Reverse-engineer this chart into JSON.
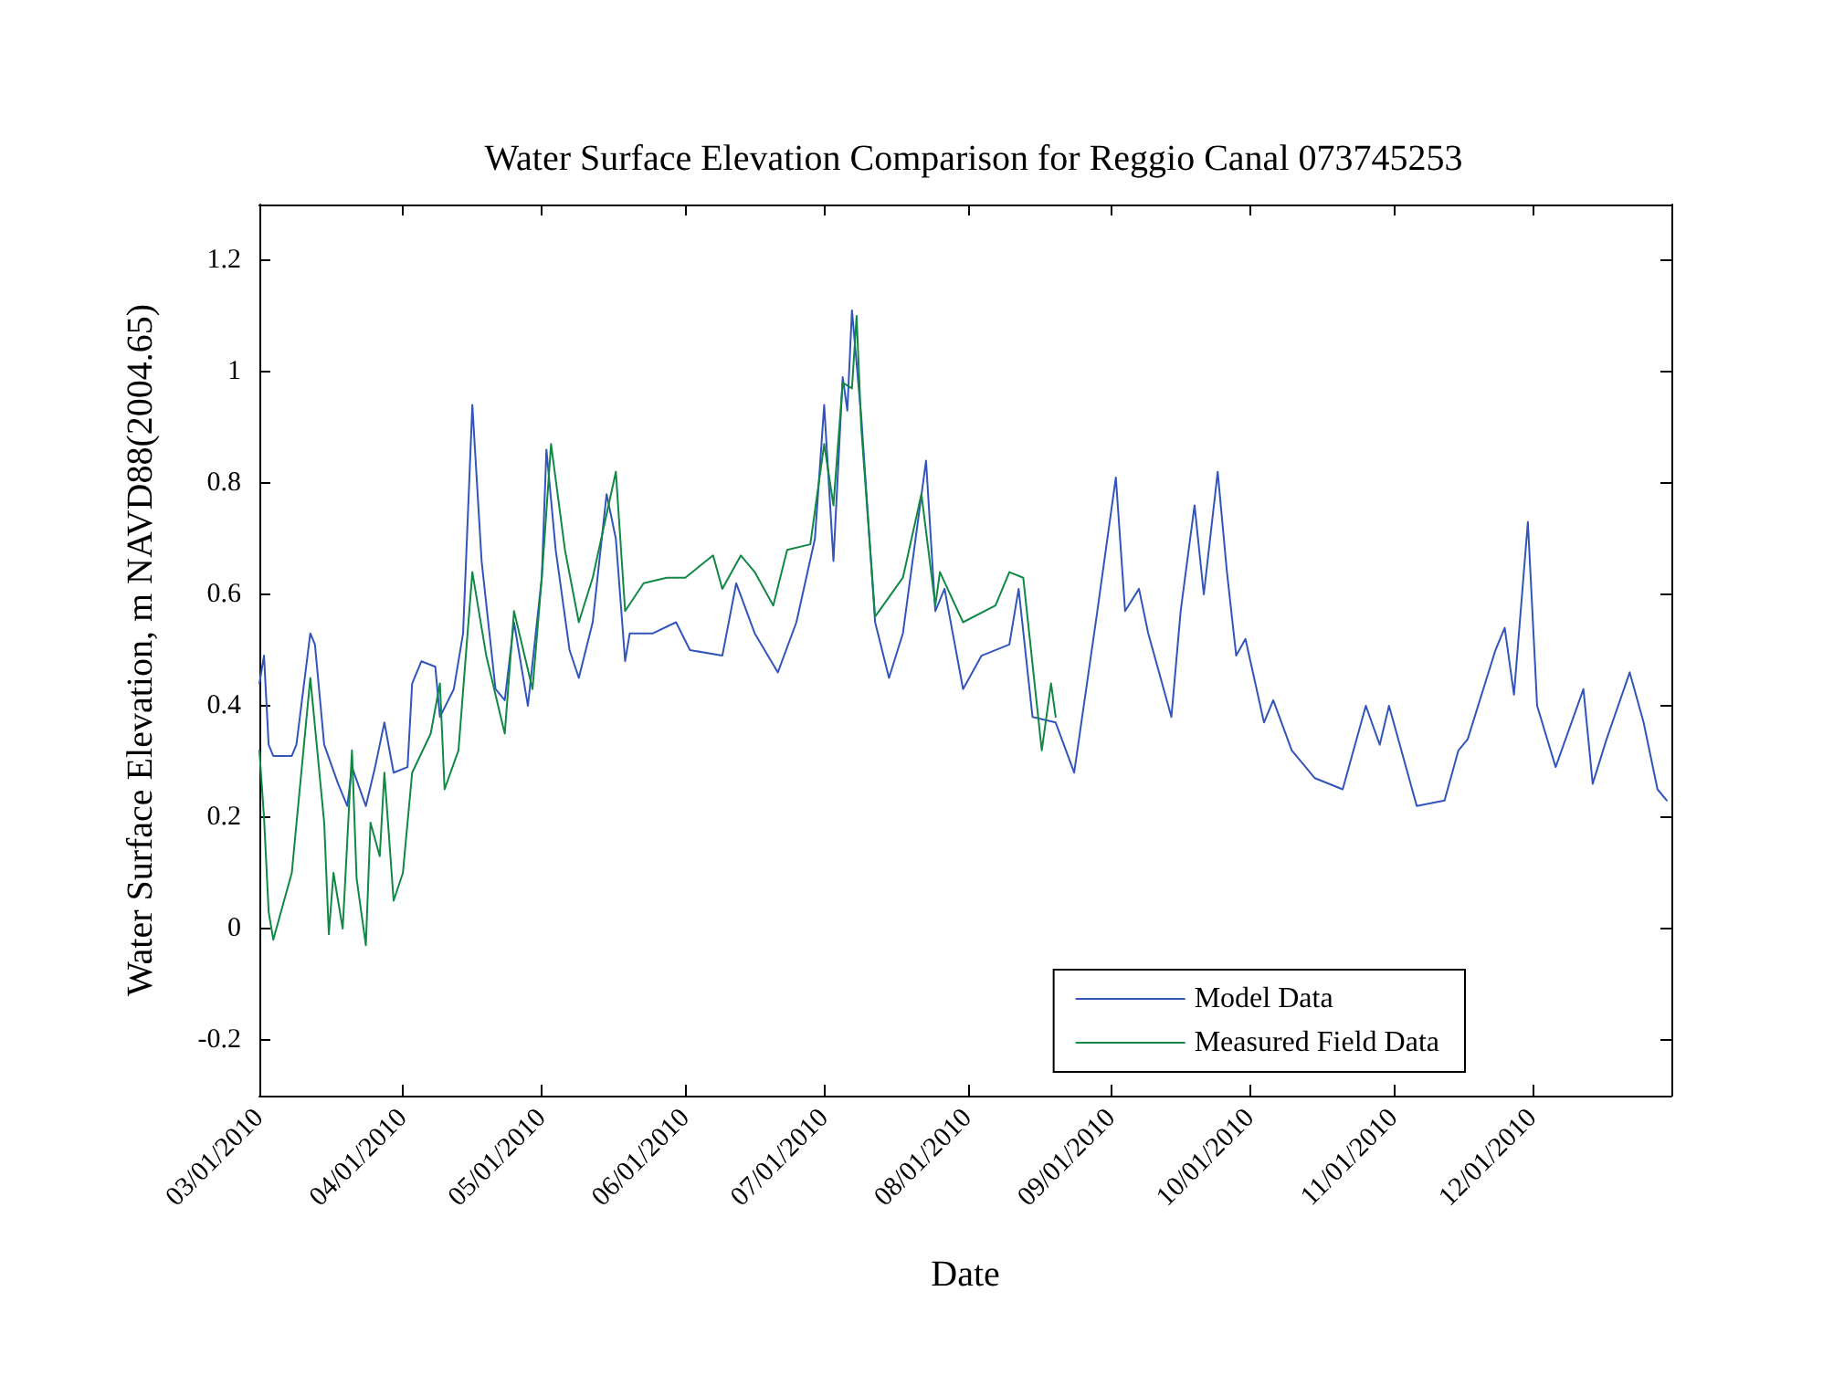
{
  "chart_data": {
    "type": "line",
    "title": "Water Surface Elevation Comparison for Reggio Canal 073745253",
    "xlabel": "Date",
    "ylabel": "Water Surface Elevation, m NAVD88(2004.65)",
    "xlim": [
      "2010-03-01",
      "2010-12-31"
    ],
    "xticks": [
      {
        "value": "2010-03-01",
        "label": "03/01/2010"
      },
      {
        "value": "2010-04-01",
        "label": "04/01/2010"
      },
      {
        "value": "2010-05-01",
        "label": "05/01/2010"
      },
      {
        "value": "2010-06-01",
        "label": "06/01/2010"
      },
      {
        "value": "2010-07-01",
        "label": "07/01/2010"
      },
      {
        "value": "2010-08-01",
        "label": "08/01/2010"
      },
      {
        "value": "2010-09-01",
        "label": "09/01/2010"
      },
      {
        "value": "2010-10-01",
        "label": "10/01/2010"
      },
      {
        "value": "2010-11-01",
        "label": "11/01/2010"
      },
      {
        "value": "2010-12-01",
        "label": "12/01/2010"
      }
    ],
    "ylim": [
      -0.3,
      1.3
    ],
    "yticks": [
      -0.2,
      0,
      0.2,
      0.4,
      0.6,
      0.8,
      1,
      1.2
    ],
    "grid": false,
    "legend": "bottom right",
    "marker": "none",
    "line_style": "solid",
    "series": [
      {
        "name": "Model Data",
        "color": "#3355bb",
        "x": [
          "2010-03-01",
          "2010-03-02",
          "2010-03-03",
          "2010-03-04",
          "2010-03-08",
          "2010-03-09",
          "2010-03-12",
          "2010-03-13",
          "2010-03-15",
          "2010-03-18",
          "2010-03-20",
          "2010-03-21",
          "2010-03-24",
          "2010-03-26",
          "2010-03-28",
          "2010-03-30",
          "2010-04-02",
          "2010-04-03",
          "2010-04-05",
          "2010-04-08",
          "2010-04-09",
          "2010-04-12",
          "2010-04-14",
          "2010-04-16",
          "2010-04-18",
          "2010-04-21",
          "2010-04-23",
          "2010-04-25",
          "2010-04-28",
          "2010-05-01",
          "2010-05-02",
          "2010-05-04",
          "2010-05-07",
          "2010-05-09",
          "2010-05-12",
          "2010-05-15",
          "2010-05-17",
          "2010-05-19",
          "2010-05-20",
          "2010-05-25",
          "2010-05-30",
          "2010-06-02",
          "2010-06-09",
          "2010-06-12",
          "2010-06-16",
          "2010-06-21",
          "2010-06-25",
          "2010-06-29",
          "2010-07-01",
          "2010-07-03",
          "2010-07-05",
          "2010-07-06",
          "2010-07-07",
          "2010-07-09",
          "2010-07-12",
          "2010-07-15",
          "2010-07-18",
          "2010-07-23",
          "2010-07-25",
          "2010-07-27",
          "2010-07-31",
          "2010-08-04",
          "2010-08-10",
          "2010-08-12",
          "2010-08-15",
          "2010-08-20",
          "2010-08-24",
          "2010-08-29",
          "2010-09-02",
          "2010-09-04",
          "2010-09-07",
          "2010-09-09",
          "2010-09-14",
          "2010-09-16",
          "2010-09-19",
          "2010-09-21",
          "2010-09-24",
          "2010-09-26",
          "2010-09-28",
          "2010-09-30",
          "2010-10-04",
          "2010-10-06",
          "2010-10-10",
          "2010-10-15",
          "2010-10-21",
          "2010-10-26",
          "2010-10-29",
          "2010-10-31",
          "2010-11-06",
          "2010-11-12",
          "2010-11-15",
          "2010-11-17",
          "2010-11-23",
          "2010-11-25",
          "2010-11-27",
          "2010-11-30",
          "2010-12-02",
          "2010-12-06",
          "2010-12-12",
          "2010-12-14",
          "2010-12-17",
          "2010-12-22",
          "2010-12-25",
          "2010-12-28",
          "2010-12-30"
        ],
        "values": [
          0.44,
          0.49,
          0.33,
          0.31,
          0.31,
          0.33,
          0.53,
          0.51,
          0.33,
          0.26,
          0.22,
          0.29,
          0.22,
          0.29,
          0.37,
          0.28,
          0.29,
          0.44,
          0.48,
          0.47,
          0.38,
          0.43,
          0.53,
          0.94,
          0.66,
          0.43,
          0.41,
          0.55,
          0.4,
          0.63,
          0.86,
          0.68,
          0.5,
          0.45,
          0.55,
          0.78,
          0.7,
          0.48,
          0.53,
          0.53,
          0.55,
          0.5,
          0.49,
          0.62,
          0.53,
          0.46,
          0.55,
          0.7,
          0.94,
          0.66,
          0.99,
          0.93,
          1.11,
          0.92,
          0.55,
          0.45,
          0.53,
          0.84,
          0.57,
          0.61,
          0.43,
          0.49,
          0.51,
          0.61,
          0.38,
          0.37,
          0.28,
          0.57,
          0.81,
          0.57,
          0.61,
          0.53,
          0.38,
          0.57,
          0.76,
          0.6,
          0.82,
          0.64,
          0.49,
          0.52,
          0.37,
          0.41,
          0.32,
          0.27,
          0.25,
          0.4,
          0.33,
          0.4,
          0.22,
          0.23,
          0.32,
          0.34,
          0.5,
          0.54,
          0.42,
          0.73,
          0.4,
          0.29,
          0.43,
          0.26,
          0.34,
          0.46,
          0.37,
          0.25,
          0.23
        ]
      },
      {
        "name": "Measured Field Data",
        "color": "#118844",
        "x": [
          "2010-03-01",
          "2010-03-02",
          "2010-03-03",
          "2010-03-04",
          "2010-03-06",
          "2010-03-08",
          "2010-03-12",
          "2010-03-15",
          "2010-03-16",
          "2010-03-17",
          "2010-03-19",
          "2010-03-21",
          "2010-03-22",
          "2010-03-24",
          "2010-03-25",
          "2010-03-27",
          "2010-03-28",
          "2010-03-30",
          "2010-04-01",
          "2010-04-03",
          "2010-04-07",
          "2010-04-09",
          "2010-04-10",
          "2010-04-13",
          "2010-04-16",
          "2010-04-19",
          "2010-04-23",
          "2010-04-25",
          "2010-04-29",
          "2010-05-01",
          "2010-05-03",
          "2010-05-06",
          "2010-05-09",
          "2010-05-12",
          "2010-05-17",
          "2010-05-19",
          "2010-05-23",
          "2010-05-28",
          "2010-06-01",
          "2010-06-07",
          "2010-06-09",
          "2010-06-13",
          "2010-06-16",
          "2010-06-20",
          "2010-06-23",
          "2010-06-28",
          "2010-07-01",
          "2010-07-03",
          "2010-07-05",
          "2010-07-07",
          "2010-07-08",
          "2010-07-09",
          "2010-07-12",
          "2010-07-18",
          "2010-07-22",
          "2010-07-25",
          "2010-07-26",
          "2010-07-31",
          "2010-08-07",
          "2010-08-10",
          "2010-08-13",
          "2010-08-17",
          "2010-08-19",
          "2010-08-20"
        ],
        "values": [
          0.32,
          0.2,
          0.03,
          -0.02,
          0.04,
          0.1,
          0.45,
          0.19,
          -0.01,
          0.1,
          0.0,
          0.32,
          0.09,
          -0.03,
          0.19,
          0.13,
          0.28,
          0.05,
          0.1,
          0.28,
          0.35,
          0.44,
          0.25,
          0.32,
          0.64,
          0.49,
          0.35,
          0.57,
          0.43,
          0.63,
          0.87,
          0.68,
          0.55,
          0.63,
          0.82,
          0.57,
          0.62,
          0.63,
          0.63,
          0.67,
          0.61,
          0.67,
          0.64,
          0.58,
          0.68,
          0.69,
          0.87,
          0.76,
          0.98,
          0.97,
          1.1,
          0.9,
          0.56,
          0.63,
          0.78,
          0.58,
          0.64,
          0.55,
          0.58,
          0.64,
          0.63,
          0.32,
          0.44,
          0.38
        ]
      }
    ]
  }
}
